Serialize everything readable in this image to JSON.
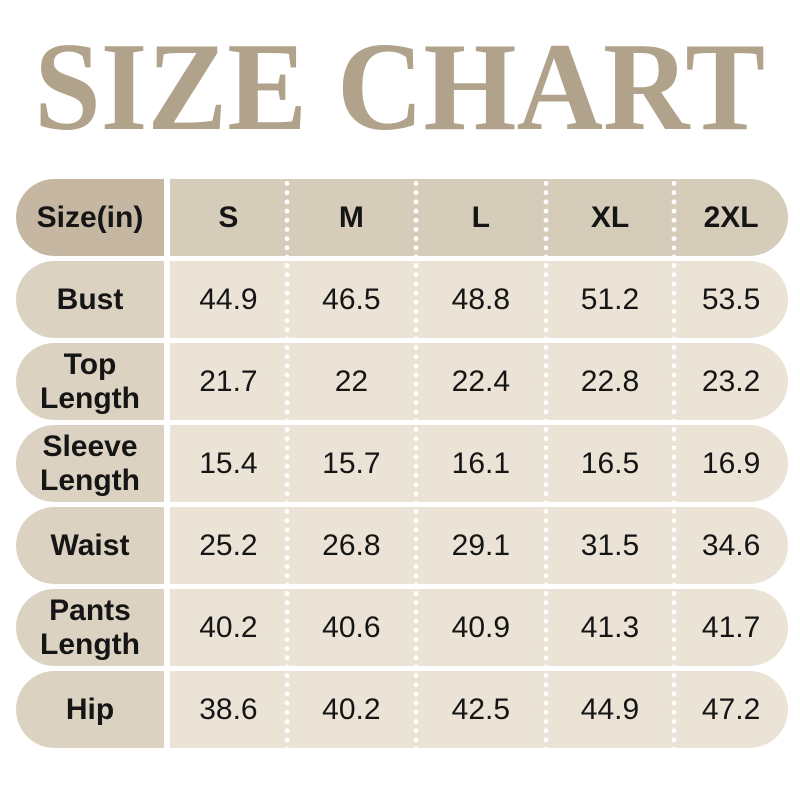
{
  "title": "SIZE CHART",
  "colors": {
    "background": "#ffffff",
    "title_text": "#b1a38b",
    "corner_cell_bg": "#c5b7a1",
    "header_row_bg": "#d5ccba",
    "label_column_bg": "#dbd2c2",
    "data_cell_bg": "#eae3d6",
    "table_text": "#151515",
    "dot_separator": "#ffffff"
  },
  "table": {
    "corner_label": "Size(in)",
    "columns": [
      "S",
      "M",
      "L",
      "XL",
      "2XL"
    ],
    "rows": [
      {
        "label": "Bust",
        "values": [
          "44.9",
          "46.5",
          "48.8",
          "51.2",
          "53.5"
        ]
      },
      {
        "label": "Top Length",
        "values": [
          "21.7",
          "22",
          "22.4",
          "22.8",
          "23.2"
        ]
      },
      {
        "label": "Sleeve Length",
        "values": [
          "15.4",
          "15.7",
          "16.1",
          "16.5",
          "16.9"
        ]
      },
      {
        "label": "Waist",
        "values": [
          "25.2",
          "26.8",
          "29.1",
          "31.5",
          "34.6"
        ]
      },
      {
        "label": "Pants Length",
        "values": [
          "40.2",
          "40.6",
          "40.9",
          "41.3",
          "41.7"
        ]
      },
      {
        "label": "Hip",
        "values": [
          "38.6",
          "40.2",
          "42.5",
          "44.9",
          "47.2"
        ]
      }
    ]
  },
  "chart_data": {
    "type": "table",
    "title": "SIZE CHART",
    "unit": "inches",
    "columns": [
      "Size(in)",
      "S",
      "M",
      "L",
      "XL",
      "2XL"
    ],
    "series": [
      {
        "name": "Bust",
        "values": [
          44.9,
          46.5,
          48.8,
          51.2,
          53.5
        ]
      },
      {
        "name": "Top Length",
        "values": [
          21.7,
          22,
          22.4,
          22.8,
          23.2
        ]
      },
      {
        "name": "Sleeve Length",
        "values": [
          15.4,
          15.7,
          16.1,
          16.5,
          16.9
        ]
      },
      {
        "name": "Waist",
        "values": [
          25.2,
          26.8,
          29.1,
          31.5,
          34.6
        ]
      },
      {
        "name": "Pants Length",
        "values": [
          40.2,
          40.6,
          40.9,
          41.3,
          41.7
        ]
      },
      {
        "name": "Hip",
        "values": [
          38.6,
          40.2,
          42.5,
          44.9,
          47.2
        ]
      }
    ]
  }
}
